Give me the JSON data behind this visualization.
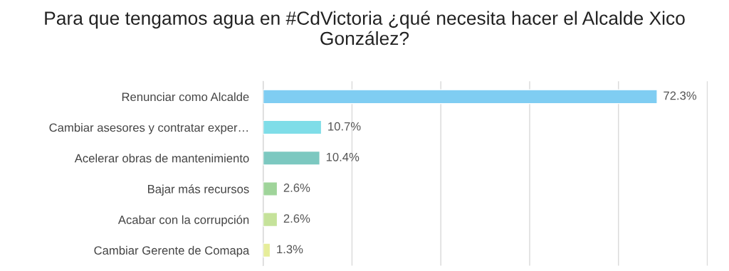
{
  "chart_data": {
    "type": "bar",
    "orientation": "horizontal",
    "title": "Para que tengamos agua en #CdVictoria ¿qué necesita hacer el Alcalde Xico González?",
    "categories": [
      "Renunciar como Alcalde",
      "Cambiar asesores y contratar exper…",
      "Acelerar obras de mantenimiento",
      "Bajar más recursos",
      "Acabar con la corrupción",
      "Cambiar Gerente de Comapa"
    ],
    "values": [
      72.3,
      10.7,
      10.4,
      2.6,
      2.6,
      1.3
    ],
    "colors": [
      "#7fcdf2",
      "#7fdde8",
      "#7cc8c0",
      "#9fd49a",
      "#c5e29a",
      "#e6ed9a"
    ],
    "value_labels": [
      "72.3%",
      "10.7%",
      "10.4%",
      "2.6%",
      "2.6%",
      "1.3%"
    ],
    "xlim": [
      0,
      81.6
    ],
    "xticks": [
      {
        "value": 0,
        "label": null
      },
      {
        "value": 16.3,
        "label": null
      },
      {
        "value": 32.6,
        "label": null
      },
      {
        "value": 48.9,
        "label": null
      },
      {
        "value": 65.2,
        "label": null
      },
      {
        "value": 81.5,
        "label": null
      }
    ],
    "grid": "x",
    "tick_labels": "y"
  }
}
